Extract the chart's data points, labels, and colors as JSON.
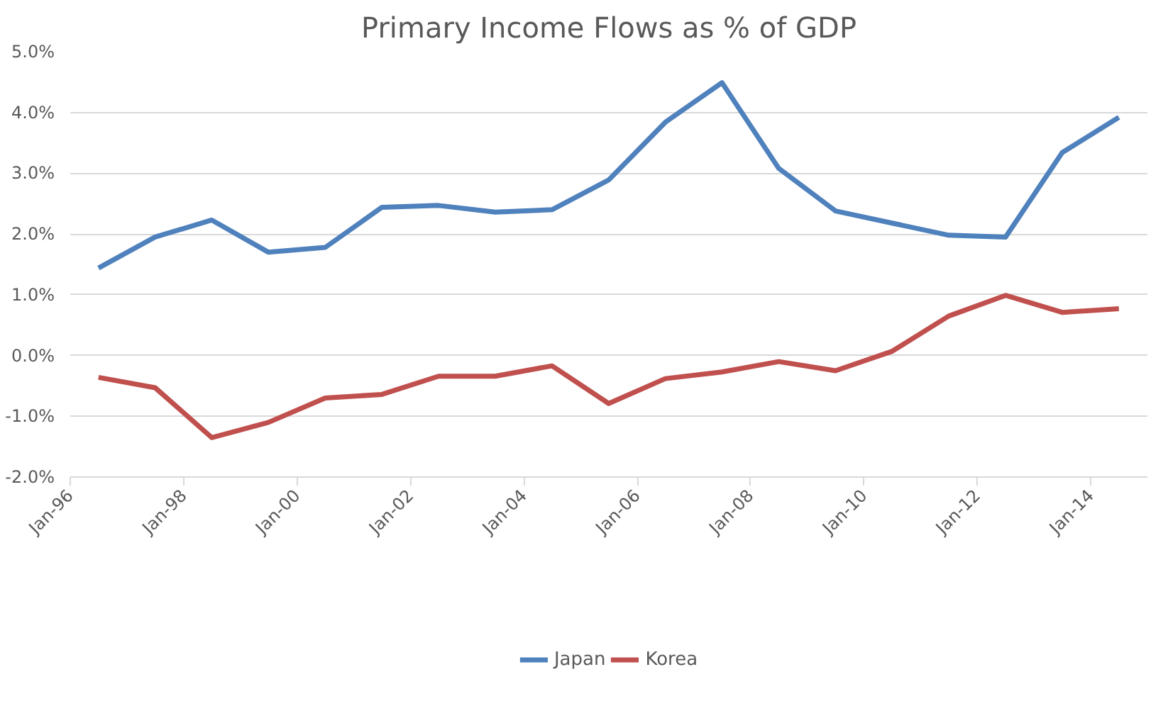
{
  "chart_data": {
    "type": "line",
    "title": "Primary Income Flows as % of GDP",
    "x": [
      "1996-07",
      "1997-07",
      "1998-07",
      "1999-07",
      "2000-07",
      "2001-07",
      "2002-07",
      "2003-07",
      "2004-07",
      "2005-07",
      "2006-07",
      "2007-07",
      "2008-07",
      "2009-07",
      "2010-07",
      "2011-07",
      "2012-07",
      "2013-07",
      "2014-07"
    ],
    "series": [
      {
        "name": "Japan",
        "color": "#4f81bd",
        "values": [
          1.44,
          1.95,
          2.23,
          1.7,
          1.78,
          2.44,
          2.47,
          2.36,
          2.4,
          2.89,
          3.84,
          4.49,
          3.08,
          2.38,
          2.18,
          1.98,
          1.95,
          3.34,
          3.92
        ]
      },
      {
        "name": "Korea",
        "color": "#c0504d",
        "values": [
          -0.36,
          -0.53,
          -1.35,
          -1.1,
          -0.7,
          -0.64,
          -0.34,
          -0.34,
          -0.17,
          -0.79,
          -0.38,
          -0.27,
          -0.1,
          -0.25,
          0.07,
          0.65,
          0.99,
          0.71,
          0.77
        ]
      }
    ],
    "xlim": [
      "1996-01",
      "2015-01"
    ],
    "xticks": [
      {
        "value": "1996-01",
        "label": "Jan-96"
      },
      {
        "value": "1998-01",
        "label": "Jan-98"
      },
      {
        "value": "2000-01",
        "label": "Jan-00"
      },
      {
        "value": "2002-01",
        "label": "Jan-02"
      },
      {
        "value": "2004-01",
        "label": "Jan-04"
      },
      {
        "value": "2006-01",
        "label": "Jan-06"
      },
      {
        "value": "2008-01",
        "label": "Jan-08"
      },
      {
        "value": "2010-01",
        "label": "Jan-10"
      },
      {
        "value": "2012-01",
        "label": "Jan-12"
      },
      {
        "value": "2014-01",
        "label": "Jan-14"
      }
    ],
    "ylim": [
      -2,
      5
    ],
    "yticks": [
      {
        "value": -2,
        "label": "-2.0%"
      },
      {
        "value": -1,
        "label": "-1.0%"
      },
      {
        "value": 0,
        "label": "0.0%"
      },
      {
        "value": 1,
        "label": "1.0%"
      },
      {
        "value": 2,
        "label": "2.0%"
      },
      {
        "value": 3,
        "label": "3.0%"
      },
      {
        "value": 4,
        "label": "4.0%"
      },
      {
        "value": 5,
        "label": "5.0%"
      }
    ],
    "grid": "y",
    "legend": "bottom",
    "line_style": "solid"
  }
}
